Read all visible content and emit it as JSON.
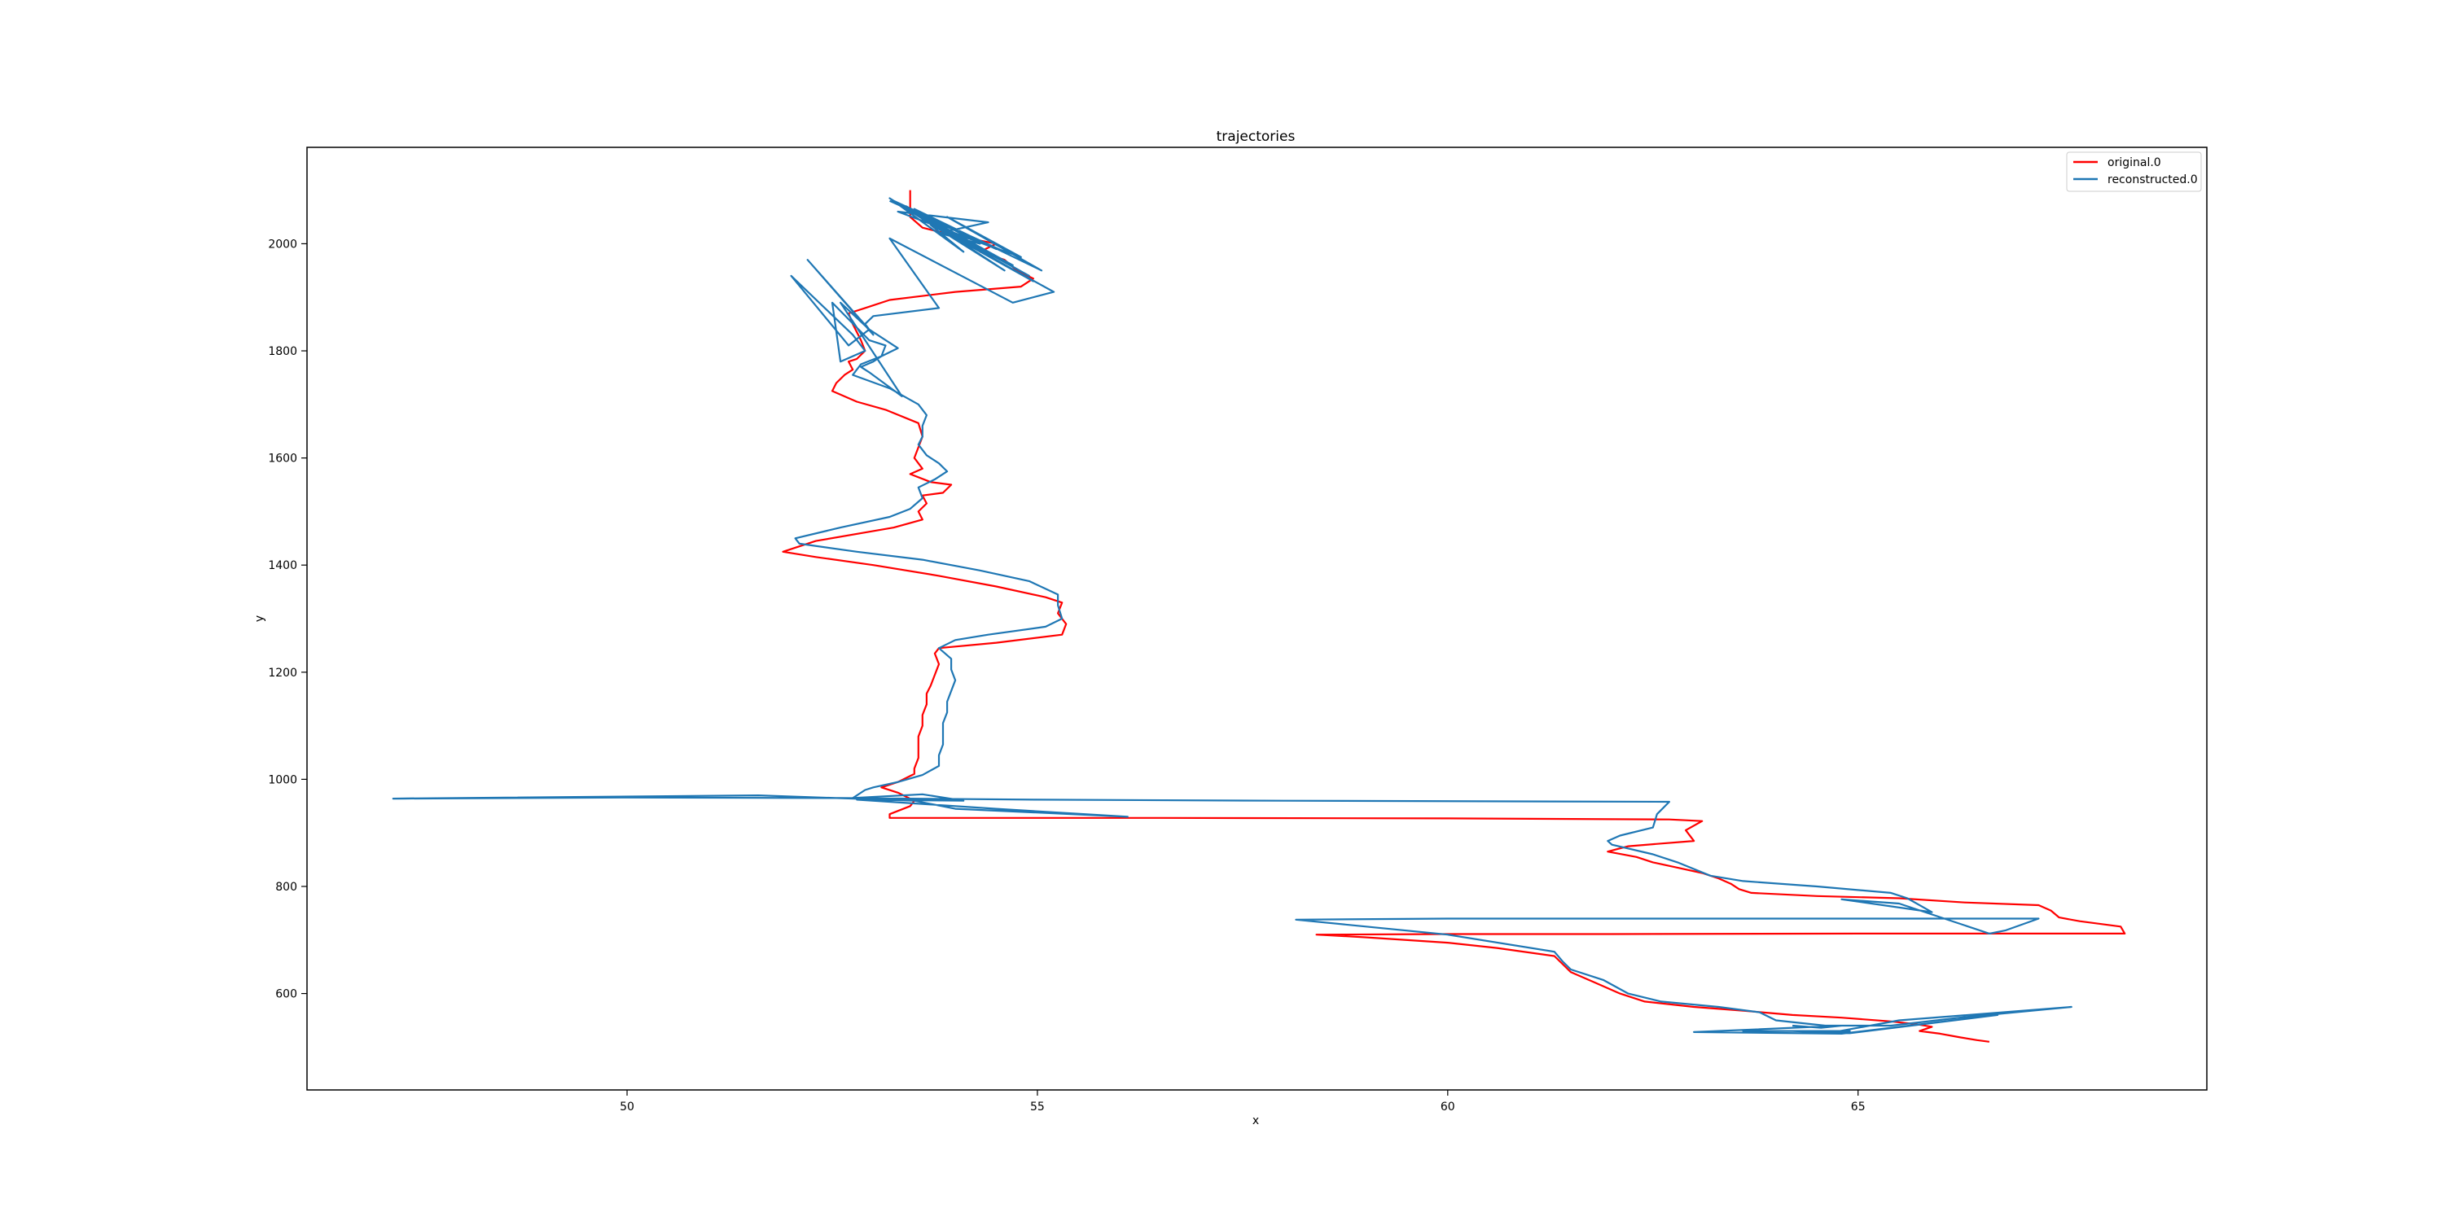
{
  "chart_data": {
    "type": "line",
    "title": "trajectories",
    "xlabel": "x",
    "ylabel": "y",
    "xlim": [
      46.1,
      69.25
    ],
    "ylim": [
      420,
      2180
    ],
    "xticks": [
      50,
      55,
      60,
      65
    ],
    "yticks": [
      600,
      800,
      1000,
      1200,
      1400,
      1600,
      1800,
      2000
    ],
    "grid": false,
    "legend_position": "top-right",
    "series": [
      {
        "name": "original.0",
        "color": "#ff0000",
        "points": [
          [
            53.45,
            2100
          ],
          [
            53.45,
            2050
          ],
          [
            53.6,
            2030
          ],
          [
            54.0,
            2015
          ],
          [
            54.5,
            2000
          ],
          [
            54.3,
            1985
          ],
          [
            54.6,
            1970
          ],
          [
            54.75,
            1950
          ],
          [
            54.95,
            1935
          ],
          [
            54.8,
            1920
          ],
          [
            54.0,
            1910
          ],
          [
            53.2,
            1895
          ],
          [
            52.9,
            1880
          ],
          [
            52.7,
            1870
          ],
          [
            52.75,
            1850
          ],
          [
            52.85,
            1820
          ],
          [
            52.9,
            1800
          ],
          [
            52.8,
            1785
          ],
          [
            52.7,
            1780
          ],
          [
            52.75,
            1765
          ],
          [
            52.65,
            1755
          ],
          [
            52.55,
            1740
          ],
          [
            52.5,
            1725
          ],
          [
            52.8,
            1705
          ],
          [
            53.15,
            1690
          ],
          [
            53.55,
            1665
          ],
          [
            53.6,
            1640
          ],
          [
            53.55,
            1620
          ],
          [
            53.5,
            1600
          ],
          [
            53.6,
            1580
          ],
          [
            53.45,
            1570
          ],
          [
            53.7,
            1555
          ],
          [
            53.95,
            1550
          ],
          [
            53.85,
            1535
          ],
          [
            53.6,
            1530
          ],
          [
            53.65,
            1515
          ],
          [
            53.55,
            1500
          ],
          [
            53.6,
            1485
          ],
          [
            53.25,
            1470
          ],
          [
            52.3,
            1445
          ],
          [
            51.9,
            1425
          ],
          [
            52.3,
            1415
          ],
          [
            53.0,
            1400
          ],
          [
            53.8,
            1380
          ],
          [
            54.5,
            1360
          ],
          [
            55.1,
            1340
          ],
          [
            55.3,
            1330
          ],
          [
            55.25,
            1310
          ],
          [
            55.35,
            1290
          ],
          [
            55.3,
            1270
          ],
          [
            54.5,
            1255
          ],
          [
            53.8,
            1245
          ],
          [
            53.75,
            1235
          ],
          [
            53.8,
            1215
          ],
          [
            53.75,
            1195
          ],
          [
            53.7,
            1175
          ],
          [
            53.65,
            1160
          ],
          [
            53.65,
            1140
          ],
          [
            53.6,
            1120
          ],
          [
            53.6,
            1100
          ],
          [
            53.55,
            1080
          ],
          [
            53.55,
            1060
          ],
          [
            53.55,
            1040
          ],
          [
            53.5,
            1020
          ],
          [
            53.5,
            1010
          ],
          [
            53.3,
            995
          ],
          [
            53.1,
            985
          ],
          [
            53.3,
            975
          ],
          [
            53.5,
            960
          ],
          [
            53.45,
            950
          ],
          [
            53.2,
            935
          ],
          [
            53.2,
            928
          ],
          [
            56.5,
            928
          ],
          [
            60.0,
            927
          ],
          [
            62.7,
            925
          ],
          [
            63.1,
            922
          ],
          [
            62.9,
            905
          ],
          [
            63.0,
            885
          ],
          [
            62.6,
            880
          ],
          [
            62.2,
            875
          ],
          [
            61.95,
            865
          ],
          [
            62.3,
            855
          ],
          [
            62.5,
            845
          ],
          [
            62.8,
            835
          ],
          [
            63.1,
            825
          ],
          [
            63.3,
            815
          ],
          [
            63.45,
            805
          ],
          [
            63.55,
            795
          ],
          [
            63.7,
            788
          ],
          [
            64.5,
            782
          ],
          [
            65.5,
            778
          ],
          [
            66.3,
            770
          ],
          [
            67.2,
            765
          ],
          [
            67.35,
            755
          ],
          [
            67.45,
            742
          ],
          [
            67.7,
            735
          ],
          [
            68.2,
            725
          ],
          [
            68.25,
            712
          ],
          [
            65.0,
            712
          ],
          [
            62.0,
            711
          ],
          [
            60.0,
            711
          ],
          [
            58.4,
            710
          ],
          [
            59.0,
            705
          ],
          [
            60.0,
            695
          ],
          [
            60.6,
            685
          ],
          [
            61.3,
            670
          ],
          [
            61.4,
            655
          ],
          [
            61.5,
            640
          ],
          [
            61.8,
            620
          ],
          [
            62.1,
            600
          ],
          [
            62.4,
            585
          ],
          [
            63.0,
            575
          ],
          [
            63.6,
            568
          ],
          [
            64.2,
            560
          ],
          [
            64.8,
            555
          ],
          [
            65.4,
            548
          ],
          [
            65.7,
            543
          ],
          [
            65.9,
            538
          ],
          [
            65.75,
            530
          ],
          [
            66.0,
            525
          ],
          [
            66.25,
            518
          ],
          [
            66.45,
            513
          ],
          [
            66.6,
            510
          ]
        ]
      },
      {
        "name": "reconstructed.0",
        "color": "#1f77b4",
        "points": [
          [
            53.2,
            2080
          ],
          [
            54.5,
            1990
          ],
          [
            53.3,
            2075
          ],
          [
            54.7,
            1960
          ],
          [
            53.4,
            2070
          ],
          [
            54.9,
            1940
          ],
          [
            53.6,
            2050
          ],
          [
            54.6,
            1950
          ],
          [
            53.2,
            2085
          ],
          [
            54.1,
            1985
          ],
          [
            53.7,
            2035
          ],
          [
            54.8,
            1975
          ],
          [
            53.9,
            2050
          ],
          [
            55.05,
            1950
          ],
          [
            53.5,
            2065
          ],
          [
            54.3,
            2000
          ],
          [
            53.8,
            2020
          ],
          [
            54.4,
            2040
          ],
          [
            53.3,
            2060
          ],
          [
            54.6,
            1985
          ],
          [
            53.25,
            2080
          ],
          [
            54.95,
            1930
          ],
          [
            53.6,
            2045
          ],
          [
            55.2,
            1910
          ],
          [
            54.7,
            1890
          ],
          [
            53.2,
            2010
          ],
          [
            53.8,
            1880
          ],
          [
            53.0,
            1865
          ],
          [
            52.9,
            1850
          ],
          [
            53.0,
            1830
          ],
          [
            52.2,
            1970
          ],
          [
            52.95,
            1840
          ],
          [
            52.7,
            1810
          ],
          [
            52.0,
            1940
          ],
          [
            52.75,
            1830
          ],
          [
            52.9,
            1800
          ],
          [
            52.6,
            1780
          ],
          [
            52.5,
            1890
          ],
          [
            52.95,
            1820
          ],
          [
            53.15,
            1810
          ],
          [
            53.1,
            1790
          ],
          [
            53.0,
            1780
          ],
          [
            52.85,
            1770
          ],
          [
            52.95,
            1760
          ],
          [
            53.35,
            1715
          ],
          [
            52.6,
            1890
          ],
          [
            52.95,
            1840
          ],
          [
            53.3,
            1805
          ],
          [
            53.1,
            1790
          ],
          [
            52.85,
            1775
          ],
          [
            52.75,
            1755
          ],
          [
            53.2,
            1730
          ],
          [
            53.55,
            1700
          ],
          [
            53.65,
            1680
          ],
          [
            53.6,
            1660
          ],
          [
            53.6,
            1640
          ],
          [
            53.55,
            1625
          ],
          [
            53.65,
            1605
          ],
          [
            53.8,
            1590
          ],
          [
            53.9,
            1575
          ],
          [
            53.75,
            1560
          ],
          [
            53.55,
            1545
          ],
          [
            53.6,
            1525
          ],
          [
            53.45,
            1505
          ],
          [
            53.2,
            1490
          ],
          [
            52.6,
            1470
          ],
          [
            52.05,
            1450
          ],
          [
            52.1,
            1440
          ],
          [
            52.8,
            1425
          ],
          [
            53.6,
            1410
          ],
          [
            54.3,
            1390
          ],
          [
            54.9,
            1370
          ],
          [
            55.25,
            1345
          ],
          [
            55.25,
            1325
          ],
          [
            55.3,
            1300
          ],
          [
            55.1,
            1285
          ],
          [
            54.4,
            1270
          ],
          [
            54.0,
            1260
          ],
          [
            53.8,
            1245
          ],
          [
            53.95,
            1225
          ],
          [
            53.95,
            1205
          ],
          [
            54.0,
            1185
          ],
          [
            53.95,
            1165
          ],
          [
            53.9,
            1145
          ],
          [
            53.9,
            1125
          ],
          [
            53.85,
            1105
          ],
          [
            53.85,
            1085
          ],
          [
            53.85,
            1065
          ],
          [
            53.8,
            1045
          ],
          [
            53.8,
            1025
          ],
          [
            53.6,
            1008
          ],
          [
            53.3,
            995
          ],
          [
            53.0,
            985
          ],
          [
            52.9,
            980
          ],
          [
            52.75,
            965
          ],
          [
            53.6,
            972
          ],
          [
            54.1,
            960
          ],
          [
            52.8,
            962
          ],
          [
            53.5,
            955
          ],
          [
            54.5,
            945
          ],
          [
            56.1,
            930
          ],
          [
            54.0,
            945
          ],
          [
            53.5,
            960
          ],
          [
            51.6,
            970
          ],
          [
            47.15,
            964
          ],
          [
            50.0,
            966
          ],
          [
            52.6,
            965
          ],
          [
            55.0,
            962
          ],
          [
            58.0,
            960
          ],
          [
            62.7,
            958
          ],
          [
            62.55,
            935
          ],
          [
            62.5,
            910
          ],
          [
            62.1,
            895
          ],
          [
            61.95,
            885
          ],
          [
            62.0,
            878
          ],
          [
            62.5,
            860
          ],
          [
            62.8,
            845
          ],
          [
            63.2,
            820
          ],
          [
            63.6,
            810
          ],
          [
            64.5,
            800
          ],
          [
            65.4,
            788
          ],
          [
            65.6,
            778
          ],
          [
            65.9,
            752
          ],
          [
            64.8,
            776
          ],
          [
            65.5,
            768
          ],
          [
            66.6,
            712
          ],
          [
            66.8,
            718
          ],
          [
            67.2,
            740
          ],
          [
            64.0,
            740
          ],
          [
            60.0,
            740
          ],
          [
            58.15,
            738
          ],
          [
            60.0,
            710
          ],
          [
            61.3,
            678
          ],
          [
            61.4,
            660
          ],
          [
            61.5,
            645
          ],
          [
            61.9,
            625
          ],
          [
            62.2,
            600
          ],
          [
            62.6,
            585
          ],
          [
            63.3,
            575
          ],
          [
            63.8,
            565
          ],
          [
            64.0,
            550
          ],
          [
            64.6,
            540
          ],
          [
            65.4,
            540
          ],
          [
            66.3,
            556
          ],
          [
            67.6,
            575
          ],
          [
            65.5,
            550
          ],
          [
            64.6,
            525
          ],
          [
            64.9,
            530
          ],
          [
            63.6,
            530
          ],
          [
            64.2,
            530
          ],
          [
            64.9,
            526
          ],
          [
            66.7,
            560
          ],
          [
            64.8,
            525
          ],
          [
            63.0,
            528
          ],
          [
            64.8,
            540
          ],
          [
            64.55,
            536
          ],
          [
            64.2,
            540
          ]
        ]
      }
    ]
  }
}
